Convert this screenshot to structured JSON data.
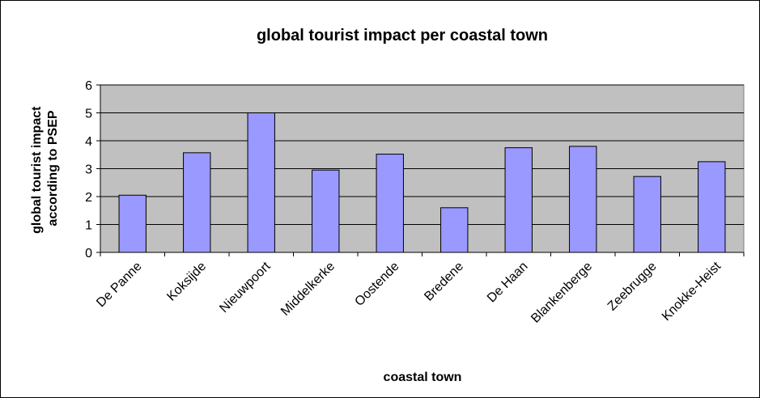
{
  "chart_data": {
    "type": "bar",
    "title": "global tourist impact per coastal town",
    "xlabel": "coastal town",
    "ylabel_lines": [
      "global tourist impact",
      "according to PSEP"
    ],
    "categories": [
      "De Panne",
      "Koksijde",
      "Nieuwpoort",
      "Middelkerke",
      "Oostende",
      "Bredene",
      "De Haan",
      "Blankenberge",
      "Zeebrugge",
      "Knokke-Heist"
    ],
    "values": [
      2.05,
      3.57,
      5.0,
      2.95,
      3.52,
      1.6,
      3.75,
      3.8,
      2.72,
      3.25
    ],
    "ylim": [
      0,
      6
    ],
    "yticks": [
      0,
      1,
      2,
      3,
      4,
      5,
      6
    ],
    "grid": true,
    "legend": "none",
    "colors": {
      "plot_bg": "#c0c0c0",
      "bar_fill": "#9999ff",
      "bar_stroke": "#000000",
      "gridline": "#000000"
    }
  }
}
